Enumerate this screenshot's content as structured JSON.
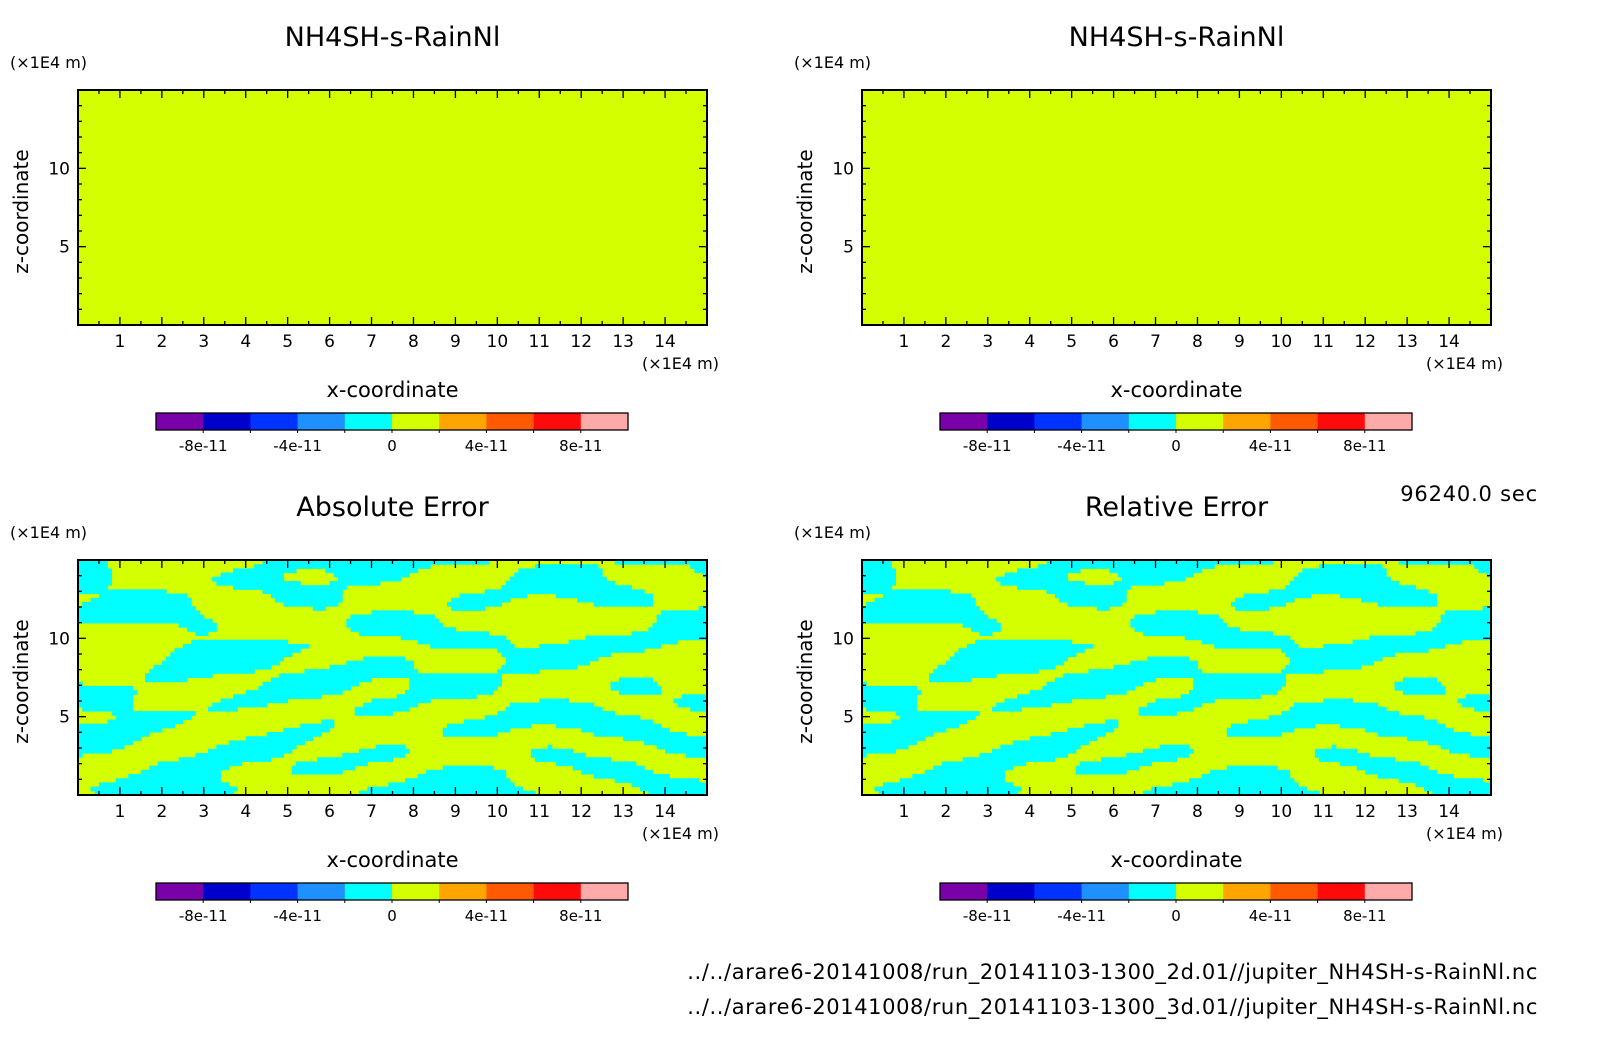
{
  "time_label": "96240.0 sec",
  "files": [
    "../../arare6-20141008/run_20141103-1300_2d.01//jupiter_NH4SH-s-RainNl.nc",
    "../../arare6-20141008/run_20141103-1300_3d.01//jupiter_NH4SH-s-RainNl.nc"
  ],
  "colors": {
    "colorbar": [
      "#7a00aa",
      "#0000cd",
      "#0033ff",
      "#1e90ff",
      "#00ffff",
      "#d4ff00",
      "#ffa500",
      "#ff5a00",
      "#ff0a0a",
      "#ffaaaa"
    ],
    "uniform_fill": "#d4ff00",
    "error_low": "#00ffff",
    "error_high": "#d4ff00"
  },
  "chart_data": [
    {
      "type": "heatmap",
      "title": "NH4SH-s-RainNl",
      "xlabel": "x-coordinate",
      "ylabel": "z-coordinate",
      "x_unit": "(×1E4 m)",
      "z_unit": "(×1E4 m)",
      "xlim": [
        0,
        15
      ],
      "zlim": [
        0,
        15
      ],
      "x_ticks": [
        "1",
        "2",
        "3",
        "4",
        "5",
        "6",
        "7",
        "8",
        "9",
        "10",
        "11",
        "12",
        "13",
        "14"
      ],
      "z_ticks": [
        "5",
        "10"
      ],
      "field": "uniform",
      "value": 0,
      "colorbar_levels": [
        -1e-10,
        -8e-11,
        -6e-11,
        -4e-11,
        -2e-11,
        0,
        2e-11,
        4e-11,
        6e-11,
        8e-11,
        1e-10
      ],
      "colorbar_labels": [
        "-8e-11",
        "-4e-11",
        "0",
        "4e-11",
        "8e-11"
      ]
    },
    {
      "type": "heatmap",
      "title": "NH4SH-s-RainNl",
      "xlabel": "x-coordinate",
      "ylabel": "z-coordinate",
      "x_unit": "(×1E4 m)",
      "z_unit": "(×1E4 m)",
      "xlim": [
        0,
        15
      ],
      "zlim": [
        0,
        15
      ],
      "x_ticks": [
        "1",
        "2",
        "3",
        "4",
        "5",
        "6",
        "7",
        "8",
        "9",
        "10",
        "11",
        "12",
        "13",
        "14"
      ],
      "z_ticks": [
        "5",
        "10"
      ],
      "field": "uniform",
      "value": 0,
      "colorbar_levels": [
        -1e-10,
        -8e-11,
        -6e-11,
        -4e-11,
        -2e-11,
        0,
        2e-11,
        4e-11,
        6e-11,
        8e-11,
        1e-10
      ],
      "colorbar_labels": [
        "-8e-11",
        "-4e-11",
        "0",
        "4e-11",
        "8e-11"
      ]
    },
    {
      "type": "heatmap",
      "title": "Absolute Error",
      "xlabel": "x-coordinate",
      "ylabel": "z-coordinate",
      "x_unit": "(×1E4 m)",
      "z_unit": "(×1E4 m)",
      "xlim": [
        0,
        15
      ],
      "zlim": [
        0,
        15
      ],
      "x_ticks": [
        "1",
        "2",
        "3",
        "4",
        "5",
        "6",
        "7",
        "8",
        "9",
        "10",
        "11",
        "12",
        "13",
        "14"
      ],
      "z_ticks": [
        "5",
        "10"
      ],
      "field": "noise",
      "seed": 3,
      "colorbar_levels": [
        -1e-10,
        -8e-11,
        -6e-11,
        -4e-11,
        -2e-11,
        0,
        2e-11,
        4e-11,
        6e-11,
        8e-11,
        1e-10
      ],
      "colorbar_labels": [
        "-8e-11",
        "-4e-11",
        "0",
        "4e-11",
        "8e-11"
      ]
    },
    {
      "type": "heatmap",
      "title": "Relative Error",
      "xlabel": "x-coordinate",
      "ylabel": "z-coordinate",
      "x_unit": "(×1E4 m)",
      "z_unit": "(×1E4 m)",
      "xlim": [
        0,
        15
      ],
      "zlim": [
        0,
        15
      ],
      "x_ticks": [
        "1",
        "2",
        "3",
        "4",
        "5",
        "6",
        "7",
        "8",
        "9",
        "10",
        "11",
        "12",
        "13",
        "14"
      ],
      "z_ticks": [
        "5",
        "10"
      ],
      "field": "noise",
      "seed": 3,
      "colorbar_levels": [
        -1e-10,
        -8e-11,
        -6e-11,
        -4e-11,
        -2e-11,
        0,
        2e-11,
        4e-11,
        6e-11,
        8e-11,
        1e-10
      ],
      "colorbar_labels": [
        "-8e-11",
        "-4e-11",
        "0",
        "4e-11",
        "8e-11"
      ]
    }
  ]
}
